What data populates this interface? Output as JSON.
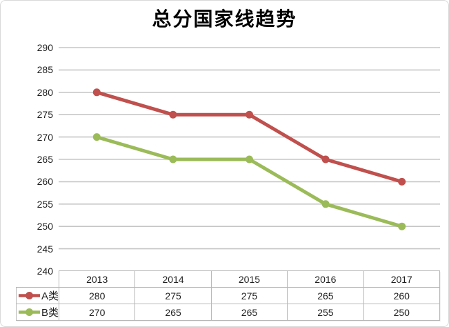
{
  "chart_data": {
    "type": "line",
    "title": "总分国家线趋势",
    "categories": [
      "2013",
      "2014",
      "2015",
      "2016",
      "2017"
    ],
    "series": [
      {
        "name": "A类",
        "values": [
          280,
          275,
          275,
          265,
          260
        ],
        "color": "#C0504D"
      },
      {
        "name": "B类",
        "values": [
          270,
          265,
          265,
          255,
          250
        ],
        "color": "#9BBB59"
      }
    ],
    "xlabel": "",
    "ylabel": "",
    "ylim": [
      240,
      290
    ],
    "ytick_step": 5,
    "yticks": [
      240,
      245,
      250,
      255,
      260,
      265,
      270,
      275,
      280,
      285,
      290
    ],
    "grid": true,
    "legend_position": "data-table-left",
    "data_table": true
  },
  "styles": {
    "gridline_color": "#C6C6C6",
    "table_border_color": "#B7B7B7",
    "frame_border_color": "#D9D9D9",
    "text_color": "#1F1F1F",
    "title_color": "#000000"
  }
}
